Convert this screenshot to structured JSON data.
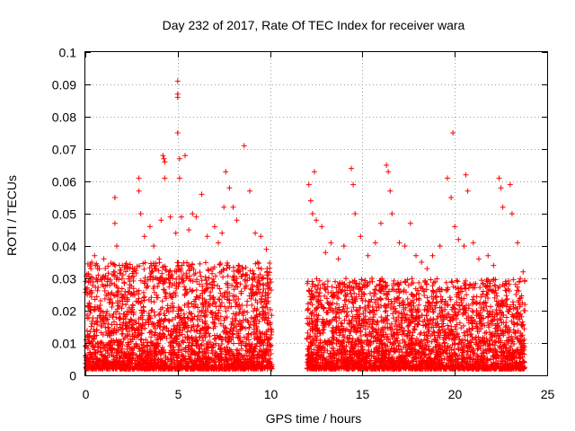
{
  "chart_data": {
    "type": "scatter",
    "title": "Day 232 of 2017, Rate Of TEC Index for receiver wara",
    "xlabel": "GPS time / hours",
    "ylabel": "ROTI / TECUs",
    "xlim": [
      0,
      25
    ],
    "ylim": [
      0,
      0.1
    ],
    "x_ticks": [
      0,
      5,
      10,
      15,
      20,
      25
    ],
    "x_tick_labels": [
      "0",
      "5",
      "10",
      "15",
      "20",
      "25"
    ],
    "y_ticks": [
      0,
      0.01,
      0.02,
      0.03,
      0.04,
      0.05,
      0.06,
      0.07,
      0.08,
      0.09,
      0.1
    ],
    "y_tick_labels": [
      "0",
      "0.01",
      "0.02",
      "0.03",
      "0.04",
      "0.05",
      "0.06",
      "0.07",
      "0.08",
      "0.09",
      "0.1"
    ],
    "grid": true,
    "marker": "+",
    "color": "#ff0000",
    "data_gap_hours": [
      10.1,
      12.0
    ],
    "series": [
      {
        "points": [
          [
            0.1,
            0.027
          ],
          [
            0.3,
            0.033
          ],
          [
            0.5,
            0.037
          ],
          [
            0.7,
            0.031
          ],
          [
            1.0,
            0.036
          ],
          [
            1.2,
            0.029
          ],
          [
            1.6,
            0.055
          ],
          [
            1.6,
            0.047
          ],
          [
            1.7,
            0.04
          ],
          [
            2.0,
            0.034
          ],
          [
            2.4,
            0.033
          ],
          [
            2.9,
            0.061
          ],
          [
            2.9,
            0.057
          ],
          [
            3.0,
            0.05
          ],
          [
            3.2,
            0.043
          ],
          [
            3.5,
            0.046
          ],
          [
            3.7,
            0.04
          ],
          [
            4.0,
            0.036
          ],
          [
            4.1,
            0.048
          ],
          [
            4.2,
            0.068
          ],
          [
            4.25,
            0.067
          ],
          [
            4.3,
            0.066
          ],
          [
            4.3,
            0.061
          ],
          [
            4.6,
            0.049
          ],
          [
            4.9,
            0.044
          ],
          [
            5.0,
            0.091
          ],
          [
            5.0,
            0.087
          ],
          [
            5.0,
            0.086
          ],
          [
            5.0,
            0.075
          ],
          [
            5.1,
            0.067
          ],
          [
            5.1,
            0.061
          ],
          [
            5.2,
            0.049
          ],
          [
            5.4,
            0.068
          ],
          [
            5.6,
            0.045
          ],
          [
            5.8,
            0.05
          ],
          [
            6.0,
            0.049
          ],
          [
            6.3,
            0.056
          ],
          [
            6.6,
            0.043
          ],
          [
            7.0,
            0.046
          ],
          [
            7.2,
            0.041
          ],
          [
            7.4,
            0.044
          ],
          [
            7.5,
            0.052
          ],
          [
            7.6,
            0.063
          ],
          [
            7.8,
            0.058
          ],
          [
            8.0,
            0.052
          ],
          [
            8.2,
            0.048
          ],
          [
            8.6,
            0.071
          ],
          [
            8.9,
            0.057
          ],
          [
            9.2,
            0.044
          ],
          [
            9.5,
            0.043
          ],
          [
            9.8,
            0.039
          ],
          [
            9.9,
            0.031
          ],
          [
            12.1,
            0.059
          ],
          [
            12.2,
            0.054
          ],
          [
            12.3,
            0.05
          ],
          [
            12.4,
            0.063
          ],
          [
            12.5,
            0.048
          ],
          [
            12.8,
            0.046
          ],
          [
            13.0,
            0.038
          ],
          [
            13.3,
            0.041
          ],
          [
            13.7,
            0.036
          ],
          [
            14.0,
            0.04
          ],
          [
            14.4,
            0.064
          ],
          [
            14.5,
            0.059
          ],
          [
            14.6,
            0.05
          ],
          [
            14.9,
            0.043
          ],
          [
            15.3,
            0.037
          ],
          [
            15.7,
            0.041
          ],
          [
            16.0,
            0.047
          ],
          [
            16.3,
            0.065
          ],
          [
            16.4,
            0.063
          ],
          [
            16.5,
            0.057
          ],
          [
            16.6,
            0.05
          ],
          [
            17.0,
            0.041
          ],
          [
            17.3,
            0.04
          ],
          [
            17.6,
            0.047
          ],
          [
            17.9,
            0.037
          ],
          [
            18.2,
            0.035
          ],
          [
            18.5,
            0.033
          ],
          [
            18.8,
            0.037
          ],
          [
            19.2,
            0.04
          ],
          [
            19.6,
            0.061
          ],
          [
            19.8,
            0.055
          ],
          [
            19.9,
            0.075
          ],
          [
            20.0,
            0.046
          ],
          [
            20.2,
            0.042
          ],
          [
            20.5,
            0.04
          ],
          [
            20.6,
            0.062
          ],
          [
            20.7,
            0.057
          ],
          [
            21.0,
            0.041
          ],
          [
            21.3,
            0.036
          ],
          [
            21.8,
            0.037
          ],
          [
            22.1,
            0.034
          ],
          [
            22.4,
            0.061
          ],
          [
            22.5,
            0.058
          ],
          [
            22.6,
            0.052
          ],
          [
            23.0,
            0.059
          ],
          [
            23.1,
            0.05
          ],
          [
            23.4,
            0.041
          ],
          [
            23.7,
            0.032
          ]
        ],
        "dense_band": [
          {
            "x_start": 0.0,
            "x_end": 10.1,
            "y_min": 0.002,
            "y_max": 0.035
          },
          {
            "x_start": 12.0,
            "x_end": 23.8,
            "y_min": 0.002,
            "y_max": 0.03
          }
        ]
      }
    ]
  }
}
